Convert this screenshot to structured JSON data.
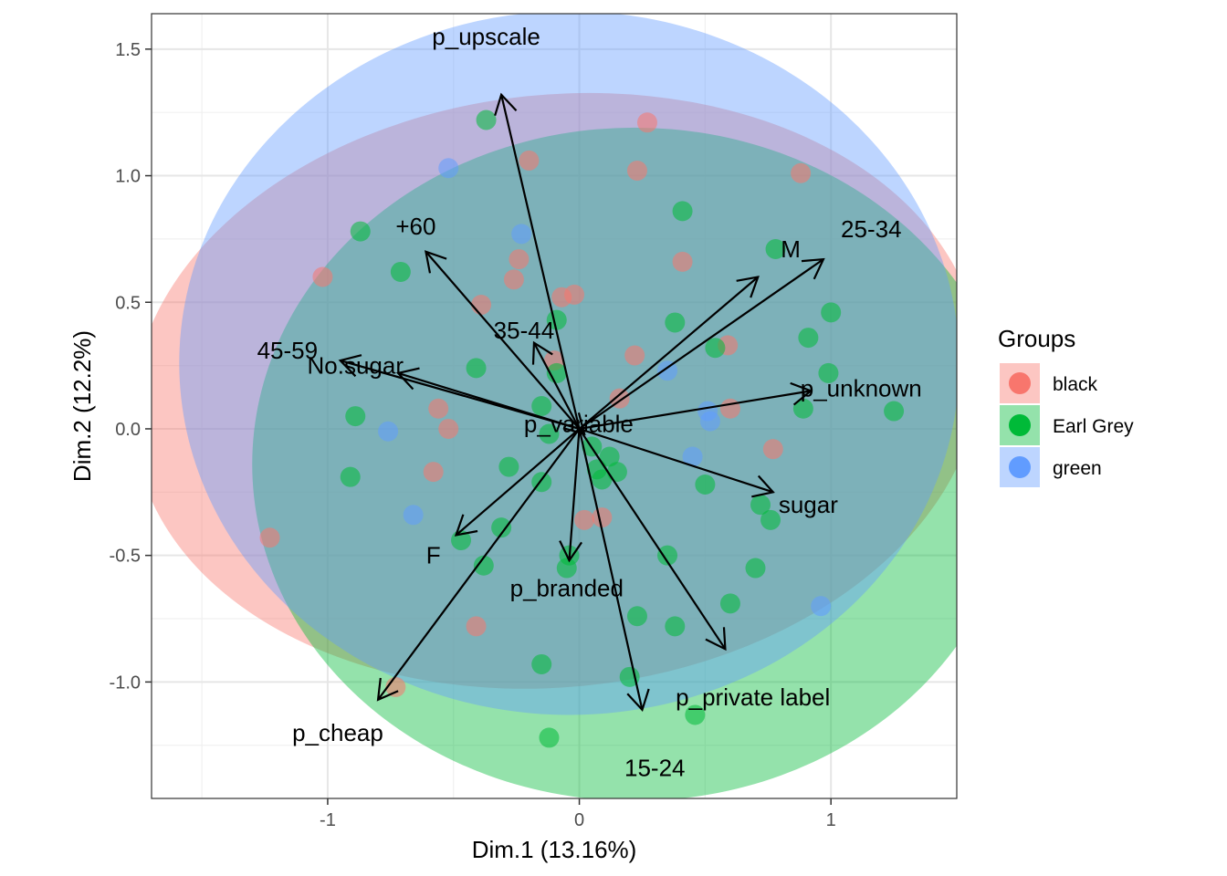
{
  "chart_data": {
    "type": "scatter",
    "xlabel": "Dim.1 (13.16%)",
    "ylabel": "Dim.2 (12.2%)",
    "xlim": [
      -1.7,
      1.5
    ],
    "ylim": [
      -1.46,
      1.64
    ],
    "x_ticks": [
      -1,
      0,
      1
    ],
    "x_tick_labels": [
      "-1",
      "0",
      "1"
    ],
    "y_ticks": [
      -1.0,
      -0.5,
      0.0,
      0.5,
      1.0,
      1.5
    ],
    "y_tick_labels": [
      "-1.0",
      "-0.5",
      "0.0",
      "0.5",
      "1.0",
      "1.5"
    ],
    "grid": true,
    "legend": {
      "title": "Groups",
      "position": "right",
      "entries": [
        {
          "name": "black",
          "color": "#F8766D"
        },
        {
          "name": "Earl Grey",
          "color": "#00BA38"
        },
        {
          "name": "green",
          "color": "#619CFF"
        }
      ]
    },
    "ellipses": [
      {
        "group": "black",
        "color": "#F8766D",
        "cx": -0.09,
        "cy": 0.15,
        "rx": 1.69,
        "ry": 1.17,
        "angle": -6
      },
      {
        "group": "Earl Grey",
        "color": "#00BA38",
        "cx": 0.22,
        "cy": -0.14,
        "rx": 1.52,
        "ry": 1.33,
        "angle": 0
      },
      {
        "group": "green",
        "color": "#619CFF",
        "cx": -0.04,
        "cy": 0.26,
        "rx": 1.55,
        "ry": 1.39,
        "angle": 0
      }
    ],
    "points": [
      {
        "x": -0.37,
        "y": 1.22,
        "group": "Earl Grey"
      },
      {
        "x": 0.27,
        "y": 1.21,
        "group": "black"
      },
      {
        "x": -0.52,
        "y": 1.03,
        "group": "green"
      },
      {
        "x": -0.2,
        "y": 1.06,
        "group": "black"
      },
      {
        "x": 0.23,
        "y": 1.02,
        "group": "black"
      },
      {
        "x": 0.88,
        "y": 1.01,
        "group": "black"
      },
      {
        "x": 0.41,
        "y": 0.86,
        "group": "Earl Grey"
      },
      {
        "x": -0.87,
        "y": 0.78,
        "group": "Earl Grey"
      },
      {
        "x": -0.23,
        "y": 0.77,
        "group": "green"
      },
      {
        "x": -0.24,
        "y": 0.67,
        "group": "black"
      },
      {
        "x": 0.41,
        "y": 0.66,
        "group": "black"
      },
      {
        "x": 0.78,
        "y": 0.71,
        "group": "Earl Grey"
      },
      {
        "x": -1.02,
        "y": 0.6,
        "group": "black"
      },
      {
        "x": -0.71,
        "y": 0.62,
        "group": "Earl Grey"
      },
      {
        "x": -0.26,
        "y": 0.59,
        "group": "black"
      },
      {
        "x": -0.07,
        "y": 0.52,
        "group": "black"
      },
      {
        "x": -0.02,
        "y": 0.53,
        "group": "black"
      },
      {
        "x": -0.39,
        "y": 0.49,
        "group": "black"
      },
      {
        "x": 1.0,
        "y": 0.46,
        "group": "Earl Grey"
      },
      {
        "x": -0.09,
        "y": 0.43,
        "group": "Earl Grey"
      },
      {
        "x": 0.38,
        "y": 0.42,
        "group": "Earl Grey"
      },
      {
        "x": 0.91,
        "y": 0.36,
        "group": "Earl Grey"
      },
      {
        "x": 0.59,
        "y": 0.33,
        "group": "black"
      },
      {
        "x": 0.54,
        "y": 0.32,
        "group": "Earl Grey"
      },
      {
        "x": 0.22,
        "y": 0.29,
        "group": "black"
      },
      {
        "x": -0.1,
        "y": 0.27,
        "group": "black"
      },
      {
        "x": -0.41,
        "y": 0.24,
        "group": "Earl Grey"
      },
      {
        "x": -0.09,
        "y": 0.22,
        "group": "Earl Grey"
      },
      {
        "x": 0.35,
        "y": 0.23,
        "group": "green"
      },
      {
        "x": 0.99,
        "y": 0.22,
        "group": "Earl Grey"
      },
      {
        "x": 0.16,
        "y": 0.12,
        "group": "black"
      },
      {
        "x": -0.15,
        "y": 0.09,
        "group": "Earl Grey"
      },
      {
        "x": 0.51,
        "y": 0.07,
        "group": "green"
      },
      {
        "x": 0.6,
        "y": 0.08,
        "group": "black"
      },
      {
        "x": 0.89,
        "y": 0.08,
        "group": "Earl Grey"
      },
      {
        "x": 1.25,
        "y": 0.07,
        "group": "Earl Grey"
      },
      {
        "x": -0.56,
        "y": 0.08,
        "group": "black"
      },
      {
        "x": -0.89,
        "y": 0.05,
        "group": "Earl Grey"
      },
      {
        "x": 0.52,
        "y": 0.03,
        "group": "green"
      },
      {
        "x": -0.76,
        "y": -0.01,
        "group": "green"
      },
      {
        "x": -0.52,
        "y": -0.0,
        "group": "black"
      },
      {
        "x": -0.12,
        "y": -0.02,
        "group": "Earl Grey"
      },
      {
        "x": 0.05,
        "y": -0.07,
        "group": "Earl Grey"
      },
      {
        "x": 0.12,
        "y": -0.11,
        "group": "Earl Grey"
      },
      {
        "x": 0.77,
        "y": -0.08,
        "group": "black"
      },
      {
        "x": 0.45,
        "y": -0.11,
        "group": "green"
      },
      {
        "x": -0.28,
        "y": -0.15,
        "group": "Earl Grey"
      },
      {
        "x": 0.07,
        "y": -0.16,
        "group": "Earl Grey"
      },
      {
        "x": 0.15,
        "y": -0.17,
        "group": "Earl Grey"
      },
      {
        "x": -0.58,
        "y": -0.17,
        "group": "black"
      },
      {
        "x": -0.91,
        "y": -0.19,
        "group": "Earl Grey"
      },
      {
        "x": -0.15,
        "y": -0.21,
        "group": "Earl Grey"
      },
      {
        "x": 0.09,
        "y": -0.2,
        "group": "Earl Grey"
      },
      {
        "x": 0.5,
        "y": -0.22,
        "group": "Earl Grey"
      },
      {
        "x": 0.72,
        "y": -0.3,
        "group": "Earl Grey"
      },
      {
        "x": 0.76,
        "y": -0.36,
        "group": "Earl Grey"
      },
      {
        "x": -0.66,
        "y": -0.34,
        "group": "green"
      },
      {
        "x": 0.02,
        "y": -0.36,
        "group": "black"
      },
      {
        "x": 0.09,
        "y": -0.35,
        "group": "black"
      },
      {
        "x": -0.31,
        "y": -0.39,
        "group": "Earl Grey"
      },
      {
        "x": -1.23,
        "y": -0.43,
        "group": "black"
      },
      {
        "x": -0.47,
        "y": -0.44,
        "group": "Earl Grey"
      },
      {
        "x": -0.04,
        "y": -0.5,
        "group": "Earl Grey"
      },
      {
        "x": 0.35,
        "y": -0.5,
        "group": "Earl Grey"
      },
      {
        "x": -0.38,
        "y": -0.54,
        "group": "Earl Grey"
      },
      {
        "x": -0.05,
        "y": -0.55,
        "group": "Earl Grey"
      },
      {
        "x": 0.7,
        "y": -0.55,
        "group": "Earl Grey"
      },
      {
        "x": 0.6,
        "y": -0.69,
        "group": "Earl Grey"
      },
      {
        "x": 0.96,
        "y": -0.7,
        "group": "green"
      },
      {
        "x": 0.23,
        "y": -0.74,
        "group": "Earl Grey"
      },
      {
        "x": 0.38,
        "y": -0.78,
        "group": "Earl Grey"
      },
      {
        "x": -0.41,
        "y": -0.78,
        "group": "black"
      },
      {
        "x": -0.15,
        "y": -0.93,
        "group": "Earl Grey"
      },
      {
        "x": 0.2,
        "y": -0.98,
        "group": "Earl Grey"
      },
      {
        "x": -0.73,
        "y": -1.02,
        "group": "black"
      },
      {
        "x": 0.46,
        "y": -1.13,
        "group": "Earl Grey"
      },
      {
        "x": -0.12,
        "y": -1.22,
        "group": "Earl Grey"
      }
    ],
    "arrows": [
      {
        "label": "p_upscale",
        "x": -0.31,
        "y": 1.32
      },
      {
        "label": "+60",
        "x": -0.61,
        "y": 0.7
      },
      {
        "label": "35-44",
        "x": -0.18,
        "y": 0.34
      },
      {
        "label": "45-59",
        "x": -0.95,
        "y": 0.27
      },
      {
        "label": "No.sugar",
        "x": -0.72,
        "y": 0.22
      },
      {
        "label": "M",
        "x": 0.71,
        "y": 0.6
      },
      {
        "label": "25-34",
        "x": 0.97,
        "y": 0.67
      },
      {
        "label": "p_unknown",
        "x": 0.92,
        "y": 0.15
      },
      {
        "label": "p_variable",
        "x": 0.02,
        "y": -0.02
      },
      {
        "label": "sugar",
        "x": 0.77,
        "y": -0.25
      },
      {
        "label": "F",
        "x": -0.49,
        "y": -0.42
      },
      {
        "label": "p_branded",
        "x": -0.04,
        "y": -0.52
      },
      {
        "label": "p_cheap",
        "x": -0.8,
        "y": -1.07
      },
      {
        "label": "p_private label",
        "x": 0.58,
        "y": -0.87
      },
      {
        "label": "15-24",
        "x": 0.25,
        "y": -1.11
      }
    ],
    "annotations": [
      {
        "text": "p_upscale",
        "x": -0.37,
        "y": 1.55,
        "anchor": "middle"
      },
      {
        "text": "+60",
        "x": -0.73,
        "y": 0.8,
        "anchor": "start"
      },
      {
        "text": "25-34",
        "x": 1.16,
        "y": 0.79,
        "anchor": "middle"
      },
      {
        "text": "M",
        "x": 0.84,
        "y": 0.71,
        "anchor": "middle"
      },
      {
        "text": "35-44",
        "x": -0.22,
        "y": 0.39,
        "anchor": "middle"
      },
      {
        "text": "45-59",
        "x": -1.16,
        "y": 0.31,
        "anchor": "middle"
      },
      {
        "text": "No.sugar",
        "x": -0.89,
        "y": 0.25,
        "anchor": "middle"
      },
      {
        "text": "p_unknown",
        "x": 1.12,
        "y": 0.16,
        "anchor": "middle"
      },
      {
        "text": "p_variable",
        "x": -0.22,
        "y": 0.02,
        "anchor": "start"
      },
      {
        "text": "sugar",
        "x": 0.91,
        "y": -0.3,
        "anchor": "middle"
      },
      {
        "text": "F",
        "x": -0.58,
        "y": -0.5,
        "anchor": "middle"
      },
      {
        "text": "p_branded",
        "x": -0.05,
        "y": -0.63,
        "anchor": "middle"
      },
      {
        "text": "p_private label",
        "x": 0.69,
        "y": -1.06,
        "anchor": "middle"
      },
      {
        "text": "p_cheap",
        "x": -0.96,
        "y": -1.2,
        "anchor": "middle"
      },
      {
        "text": "15-24",
        "x": 0.3,
        "y": -1.34,
        "anchor": "middle"
      }
    ]
  }
}
